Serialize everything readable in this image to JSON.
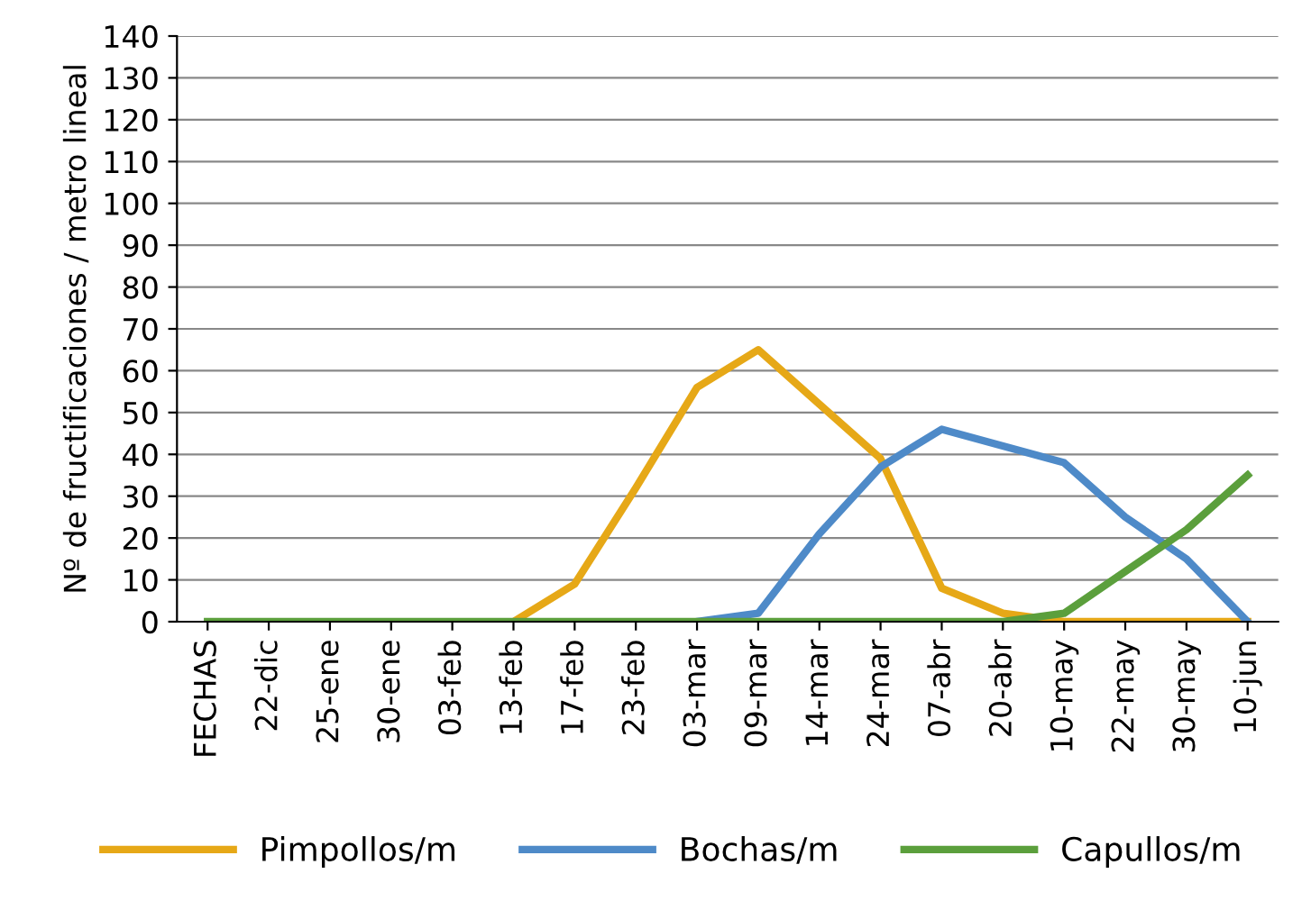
{
  "chart_data": {
    "type": "line",
    "ylabel": "Nº de fructificaciones / metro lineal",
    "categories": [
      "FECHAS",
      "22-dic",
      "25-ene",
      "30-ene",
      "03-feb",
      "13-feb",
      "17-feb",
      "23-feb",
      "03-mar",
      "09-mar",
      "14-mar",
      "24-mar",
      "07-abr",
      "20-abr",
      "10-may",
      "22-may",
      "30-may",
      "10-jun"
    ],
    "series": [
      {
        "name": "Pimpollos/m",
        "color": "#e6a817",
        "values": [
          null,
          null,
          null,
          null,
          null,
          0,
          9,
          32,
          56,
          65,
          52,
          39,
          8,
          2,
          0,
          0,
          0,
          0
        ]
      },
      {
        "name": "Bochas/m",
        "color": "#4e8ac8",
        "values": [
          null,
          null,
          null,
          null,
          null,
          null,
          null,
          null,
          0,
          2,
          21,
          37,
          46,
          42,
          38,
          25,
          15,
          0
        ]
      },
      {
        "name": "Capullos/m",
        "color": "#5b9f3c",
        "values": [
          0,
          0,
          0,
          0,
          0,
          0,
          0,
          0,
          0,
          0,
          0,
          0,
          0,
          0,
          2,
          12,
          22,
          35
        ]
      }
    ],
    "ylim": [
      0,
      140
    ],
    "yticks": [
      0,
      10,
      20,
      30,
      40,
      50,
      60,
      70,
      80,
      90,
      100,
      110,
      120,
      130,
      140
    ],
    "grid": "y",
    "legend": "bottom",
    "marker": "none",
    "line_style": "solid"
  }
}
